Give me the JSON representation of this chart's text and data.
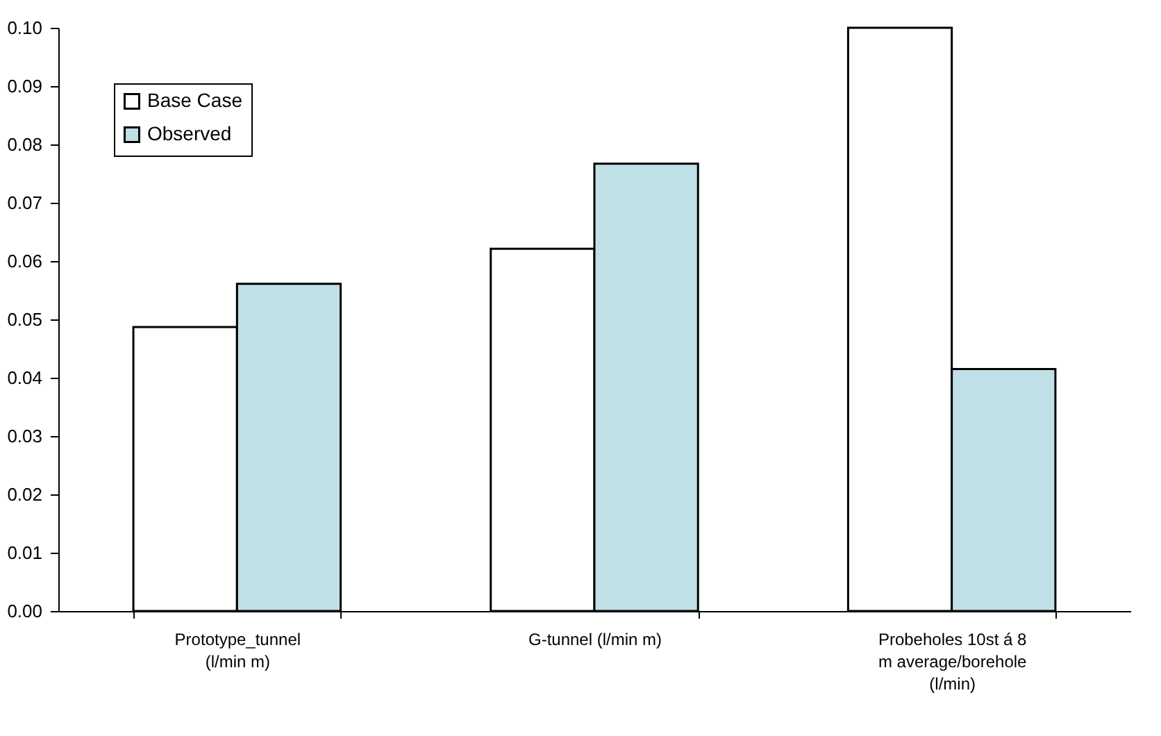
{
  "chart_data": {
    "type": "bar",
    "categories": [
      "Prototype_tunnel (l/min m)",
      "G-tunnel (l/min m)",
      "Probeholes 10st á 8 m average/borehole (l/min)"
    ],
    "series": [
      {
        "name": "Base Case",
        "color": "#ffffff",
        "values": [
          0.0487,
          0.0621,
          0.1
        ]
      },
      {
        "name": "Observed",
        "color": "#bfe0e6",
        "values": [
          0.0561,
          0.0767,
          0.0415
        ]
      }
    ],
    "ylim": [
      0,
      0.1
    ],
    "yticks": [
      {
        "value": 0,
        "label": "0.00"
      },
      {
        "value": 0.01,
        "label": "0.01"
      },
      {
        "value": 0.02,
        "label": "0.02"
      },
      {
        "value": 0.03,
        "label": "0.03"
      },
      {
        "value": 0.04,
        "label": "0.04"
      },
      {
        "value": 0.05,
        "label": "0.05"
      },
      {
        "value": 0.06,
        "label": "0.06"
      },
      {
        "value": 0.07,
        "label": "0.07"
      },
      {
        "value": 0.08,
        "label": "0.08"
      },
      {
        "value": 0.09,
        "label": "0.09"
      },
      {
        "value": 0.1,
        "label": "0.10"
      }
    ],
    "grid": false,
    "legend": "top left"
  }
}
